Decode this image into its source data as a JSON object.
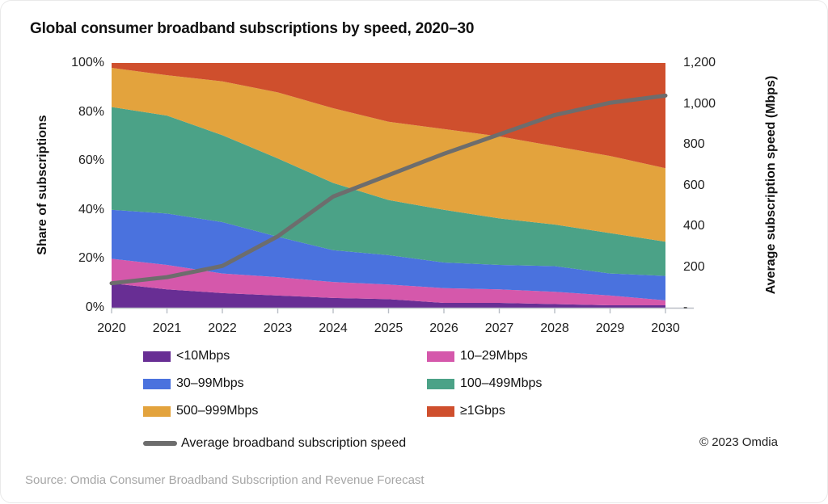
{
  "title": "Global consumer broadband subscriptions by speed, 2020–30",
  "copyright": "© 2023 Omdia",
  "source": "Source: Omdia Consumer Broadband Subscription and Revenue Forecast",
  "colors": {
    "axis": "#b9bec6",
    "tick_text": "#1f1f1f",
    "title_text": "#111111",
    "source_text": "#a6a6a6"
  },
  "chart_data": {
    "type": "area",
    "stacked": true,
    "grid": false,
    "legend_position": "bottom",
    "x_tick_labels": [
      "2020",
      "2021",
      "2022",
      "2023",
      "2024",
      "2025",
      "2026",
      "2027",
      "2028",
      "2029",
      "2030"
    ],
    "left_axis": {
      "label": "Share of subscriptions",
      "unit": "%",
      "range": [
        0,
        100
      ],
      "ticks": [
        100,
        80,
        60,
        40,
        20,
        0
      ],
      "tick_labels": [
        "100%",
        "80%",
        "60%",
        "40%",
        "20%",
        "0%"
      ]
    },
    "right_axis": {
      "label": "Average subscription speed (Mbps)",
      "unit": "Mbps",
      "range": [
        0,
        1200
      ],
      "ticks": [
        1200,
        1000,
        800,
        600,
        400,
        200,
        0
      ],
      "tick_labels": [
        "1,200",
        "1,000",
        "800",
        "600",
        "400",
        "200",
        "-"
      ]
    },
    "series": [
      {
        "name": "<10Mbps",
        "color": "#682e94",
        "unit": "%",
        "values": [
          10,
          7.5,
          6,
          5,
          4,
          3.5,
          2,
          2,
          1.5,
          1,
          1
        ]
      },
      {
        "name": "10–29Mbps",
        "color": "#d558ab",
        "unit": "%",
        "values": [
          10,
          10,
          8,
          7.5,
          6.5,
          6,
          6,
          5.5,
          5,
          4,
          2
        ]
      },
      {
        "name": "30–99Mbps",
        "color": "#4a72de",
        "unit": "%",
        "values": [
          20,
          21,
          21,
          16.5,
          13,
          12,
          10.5,
          10,
          10.5,
          9,
          10
        ]
      },
      {
        "name": "100–499Mbps",
        "color": "#4ba287",
        "unit": "%",
        "values": [
          42,
          40,
          35.5,
          32,
          27.5,
          22.5,
          21.5,
          19,
          17,
          16.5,
          14
        ]
      },
      {
        "name": "500–999Mbps",
        "color": "#e3a33d",
        "unit": "%",
        "values": [
          16,
          16.5,
          22,
          27,
          30.5,
          32,
          33,
          33.5,
          32,
          31.5,
          30
        ]
      },
      {
        "name": "≥1Gbps",
        "color": "#cf4f2d",
        "unit": "%",
        "values": [
          2,
          5,
          7.5,
          12,
          18.5,
          24,
          27,
          30,
          34,
          38,
          43
        ]
      }
    ],
    "line_series": {
      "name": "Average broadband subscription speed",
      "color": "#6d6d6d",
      "unit": "Mbps",
      "values": [
        120,
        150,
        205,
        350,
        545,
        650,
        755,
        850,
        945,
        1005,
        1040
      ]
    }
  }
}
